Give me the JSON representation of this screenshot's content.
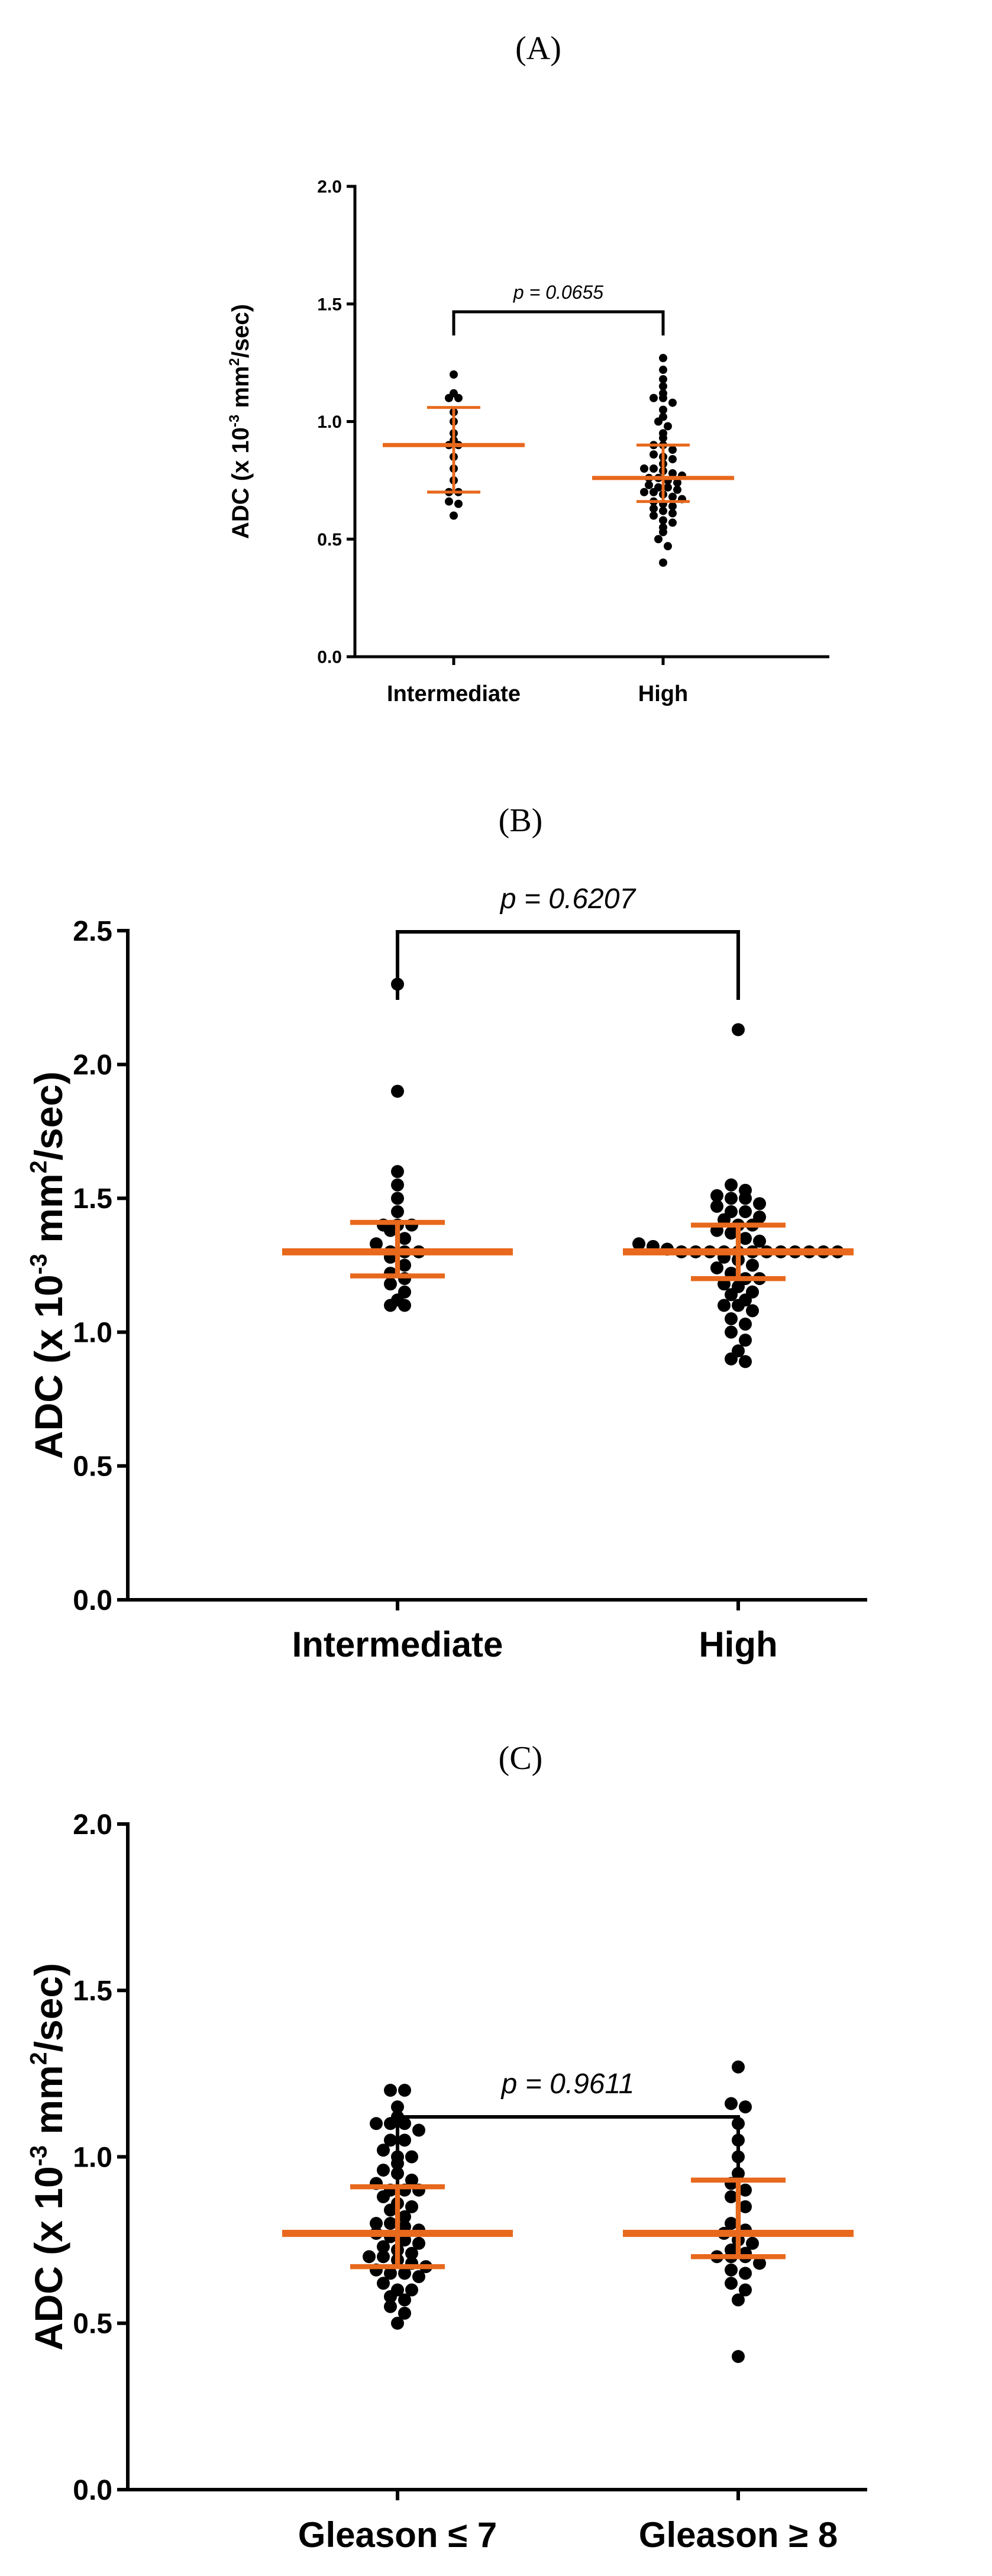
{
  "colors": {
    "points": "#000000",
    "summary": "#e8681c",
    "axis": "#000000"
  },
  "chart_data": [
    {
      "panel": "(A)",
      "type": "scatter",
      "title": "(A)",
      "ylabel": "ADC (x 10",
      "ylabel_exp": "-3",
      "ylabel_unit": " mm",
      "ylabel_unit_exp": "2",
      "ylabel_tail": "/sec)",
      "ylim": [
        0,
        2.0
      ],
      "yticks": [
        "0.0",
        "0.5",
        "1.0",
        "1.5",
        "2.0"
      ],
      "ytick_values": [
        0,
        0.5,
        1.0,
        1.5,
        2.0
      ],
      "categories": [
        "Intermediate",
        "High"
      ],
      "p_value": "p = 0.0655",
      "groups": [
        {
          "name": "Intermediate",
          "median": 0.9,
          "q1": 0.7,
          "q3": 1.06,
          "points": [
            1.2,
            1.12,
            1.1,
            1.1,
            1.04,
            1.0,
            0.95,
            0.92,
            0.9,
            0.9,
            0.85,
            0.8,
            0.75,
            0.7,
            0.7,
            0.66,
            0.65,
            0.6
          ]
        },
        {
          "name": "High",
          "median": 0.76,
          "q1": 0.66,
          "q3": 0.9,
          "points": [
            1.27,
            1.22,
            1.18,
            1.15,
            1.12,
            1.1,
            1.1,
            1.08,
            1.05,
            1.02,
            1.0,
            0.98,
            0.95,
            0.93,
            0.9,
            0.9,
            0.88,
            0.86,
            0.85,
            0.84,
            0.82,
            0.8,
            0.8,
            0.79,
            0.78,
            0.77,
            0.76,
            0.76,
            0.75,
            0.74,
            0.73,
            0.72,
            0.72,
            0.71,
            0.7,
            0.7,
            0.69,
            0.68,
            0.67,
            0.66,
            0.65,
            0.64,
            0.63,
            0.62,
            0.61,
            0.6,
            0.58,
            0.57,
            0.55,
            0.53,
            0.5,
            0.47,
            0.4
          ]
        }
      ]
    },
    {
      "panel": "(B)",
      "type": "scatter",
      "title": "(B)",
      "ylabel": "ADC (x 10",
      "ylabel_exp": "-3",
      "ylabel_unit": " mm",
      "ylabel_unit_exp": "2",
      "ylabel_tail": "/sec)",
      "ylim": [
        0,
        2.5
      ],
      "yticks": [
        "0.0",
        "0.5",
        "1.0",
        "1.5",
        "2.0",
        "2.5"
      ],
      "ytick_values": [
        0,
        0.5,
        1.0,
        1.5,
        2.0,
        2.5
      ],
      "categories": [
        "Intermediate",
        "High"
      ],
      "p_value": "p = 0.6207",
      "groups": [
        {
          "name": "Intermediate",
          "median": 1.3,
          "q1": 1.21,
          "q3": 1.41,
          "points": [
            2.3,
            1.9,
            1.6,
            1.55,
            1.5,
            1.45,
            1.4,
            1.4,
            1.4,
            1.38,
            1.35,
            1.33,
            1.3,
            1.3,
            1.3,
            1.28,
            1.25,
            1.22,
            1.2,
            1.18,
            1.15,
            1.12,
            1.1,
            1.1
          ]
        },
        {
          "name": "High",
          "median": 1.3,
          "q1": 1.2,
          "q3": 1.4,
          "points": [
            2.13,
            1.55,
            1.53,
            1.51,
            1.5,
            1.5,
            1.48,
            1.47,
            1.45,
            1.45,
            1.43,
            1.42,
            1.4,
            1.4,
            1.38,
            1.37,
            1.35,
            1.34,
            1.33,
            1.32,
            1.31,
            1.3,
            1.3,
            1.3,
            1.3,
            1.3,
            1.3,
            1.3,
            1.3,
            1.3,
            1.3,
            1.3,
            1.3,
            1.28,
            1.27,
            1.25,
            1.24,
            1.22,
            1.2,
            1.2,
            1.18,
            1.17,
            1.15,
            1.14,
            1.12,
            1.1,
            1.1,
            1.08,
            1.05,
            1.03,
            1.0,
            0.97,
            0.93,
            0.9,
            0.89
          ]
        }
      ]
    },
    {
      "panel": "(C)",
      "type": "scatter",
      "title": "(C)",
      "ylabel": "ADC (x 10",
      "ylabel_exp": "-3",
      "ylabel_unit": " mm",
      "ylabel_unit_exp": "2",
      "ylabel_tail": "/sec)",
      "ylim": [
        0,
        2.0
      ],
      "yticks": [
        "0.0",
        "0.5",
        "1.0",
        "1.5",
        "2.0"
      ],
      "ytick_values": [
        0,
        0.5,
        1.0,
        1.5,
        2.0
      ],
      "categories": [
        "Gleason ≤ 7",
        "Gleason ≥ 8"
      ],
      "p_value": "p = 0.9611",
      "groups": [
        {
          "name": "Gleason ≤ 7",
          "median": 0.77,
          "q1": 0.67,
          "q3": 0.91,
          "points": [
            1.2,
            1.2,
            1.15,
            1.12,
            1.1,
            1.1,
            1.1,
            1.08,
            1.05,
            1.05,
            1.02,
            1.0,
            1.0,
            0.98,
            0.96,
            0.95,
            0.93,
            0.92,
            0.9,
            0.9,
            0.9,
            0.88,
            0.86,
            0.85,
            0.84,
            0.82,
            0.8,
            0.8,
            0.79,
            0.78,
            0.77,
            0.76,
            0.75,
            0.74,
            0.73,
            0.72,
            0.71,
            0.7,
            0.7,
            0.69,
            0.68,
            0.67,
            0.66,
            0.65,
            0.65,
            0.64,
            0.62,
            0.6,
            0.6,
            0.58,
            0.57,
            0.55,
            0.53,
            0.5
          ]
        },
        {
          "name": "Gleason ≥ 8",
          "median": 0.77,
          "q1": 0.7,
          "q3": 0.93,
          "points": [
            1.27,
            1.16,
            1.15,
            1.1,
            1.05,
            1.0,
            0.95,
            0.92,
            0.9,
            0.88,
            0.85,
            0.8,
            0.78,
            0.77,
            0.75,
            0.74,
            0.72,
            0.71,
            0.7,
            0.7,
            0.7,
            0.68,
            0.66,
            0.65,
            0.62,
            0.6,
            0.57,
            0.4
          ]
        }
      ]
    }
  ]
}
